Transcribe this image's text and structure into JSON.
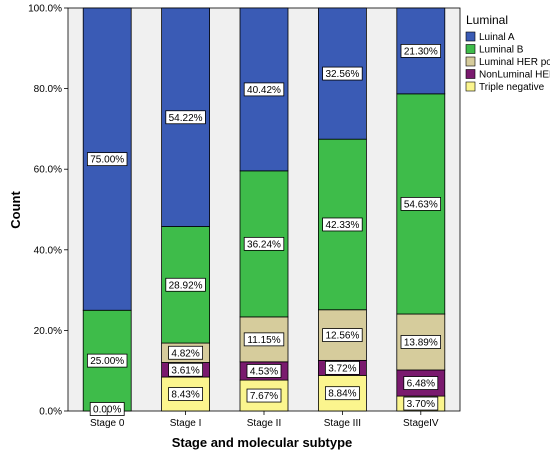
{
  "colors": {
    "plot_background": "#f0f0f0",
    "Luinal A": "#3a5bb5",
    "Luminal B": "#3ebc4a",
    "Luminal HER pozitiv": "#d6cc9c",
    "NonLuminal HER pozitiv": "#7a1a6e",
    "Triple negative": "#fbf58e"
  },
  "chart_data": {
    "type": "bar",
    "stacked": true,
    "percent": true,
    "xlabel": "Stage and molecular subtype",
    "ylabel": "Count",
    "ylim": [
      0,
      100
    ],
    "yticks": [
      "0.0%",
      "20.0%",
      "40.0%",
      "60.0%",
      "80.0%",
      "100.0%"
    ],
    "categories": [
      "Stage 0",
      "Stage I",
      "Stage II",
      "Stage III",
      "StageIV"
    ],
    "legend_title": "Luminal",
    "legend_position": "top-right, outside plot",
    "series": [
      {
        "name": "Luinal A",
        "values": [
          75.0,
          54.22,
          40.42,
          32.56,
          21.3
        ],
        "labels": [
          "75.00%",
          "54.22%",
          "40.42%",
          "32.56%",
          "21.30%"
        ]
      },
      {
        "name": "Luminal B",
        "values": [
          25.0,
          28.92,
          36.24,
          42.33,
          54.63
        ],
        "labels": [
          "25.00%",
          "28.92%",
          "36.24%",
          "42.33%",
          "54.63%"
        ]
      },
      {
        "name": "Luminal HER pozitiv",
        "values": [
          0,
          4.82,
          11.15,
          12.56,
          13.89
        ],
        "labels": [
          "",
          "4.82%",
          "11.15%",
          "12.56%",
          "13.89%"
        ]
      },
      {
        "name": "NonLuminal HER pozitiv",
        "values": [
          0,
          3.61,
          4.53,
          3.72,
          6.48
        ],
        "labels": [
          "",
          "3.61%",
          "4.53%",
          "3.72%",
          "6.48%"
        ]
      },
      {
        "name": "Triple negative",
        "values": [
          0.0,
          8.43,
          7.67,
          8.84,
          3.7
        ],
        "labels": [
          "0.00%",
          "8.43%",
          "7.67%",
          "8.84%",
          "3.70%"
        ]
      }
    ]
  }
}
